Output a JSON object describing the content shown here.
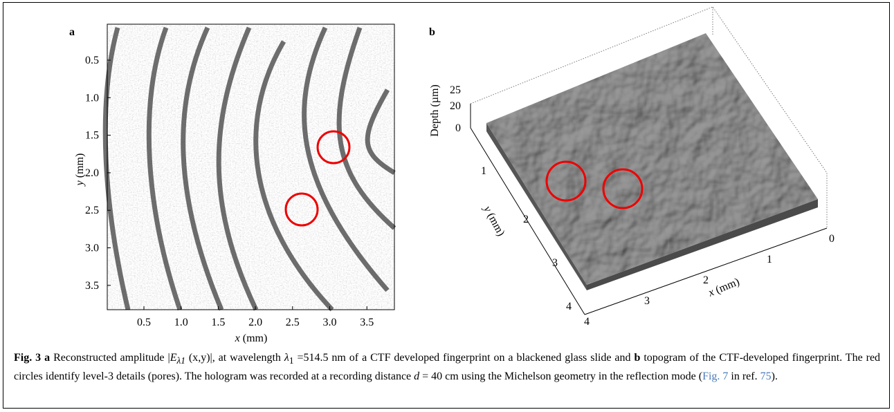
{
  "panel_a": {
    "label": "a",
    "y_ticks": [
      "0.5",
      "1.0",
      "1.5",
      "2.0",
      "2.5",
      "3.0",
      "3.5"
    ],
    "x_ticks": [
      "0.5",
      "1.0",
      "1.5",
      "2.0",
      "2.5",
      "3.0",
      "3.5"
    ],
    "x_label_var": "x",
    "x_label_unit": "(mm)",
    "y_label_var": "y",
    "y_label_unit": "(mm)"
  },
  "panel_b": {
    "label": "b",
    "depth_ticks": [
      "25",
      "20",
      "0"
    ],
    "depth_label": "Depth (µm)",
    "y_ticks": [
      "1",
      "2",
      "3",
      "4"
    ],
    "x_ticks": [
      "0",
      "1",
      "2",
      "3",
      "4"
    ],
    "x_label_var": "x",
    "x_label_unit": "(mm)",
    "y_label_var": "y",
    "y_label_unit": "(mm)"
  },
  "caption": [
    "Fig. 3",
    "a",
    "Reconstructed amplitude |",
    "E",
    "λ1",
    "(x,y)|, at wavelength",
    "λ",
    "1",
    "=514.5 nm of a CTF developed fingerprint on a blackened glass slide and",
    "b",
    "topogram of the CTF-developed fingerprint. The red circles identify level-3 details (pores). The hologram was recorded at a recording distance",
    "d",
    "= 40 cm using the Michelson geometry in the reflection mode (",
    "Fig. 7",
    " in ref. ",
    "75",
    ")."
  ]
}
